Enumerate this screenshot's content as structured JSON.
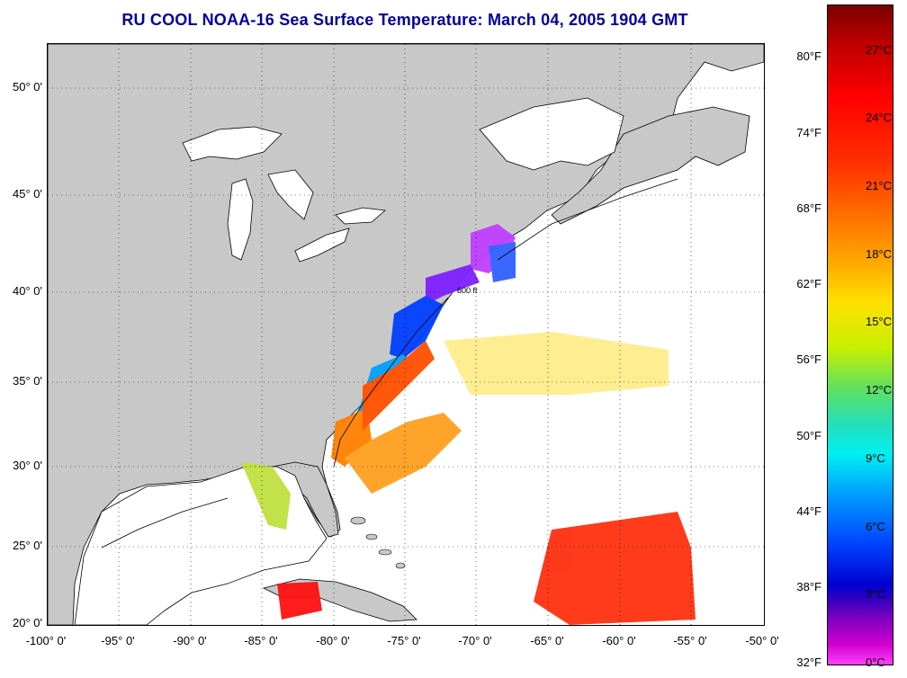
{
  "title": "RU COOL  NOAA-16  Sea Surface Temperature:  March 04, 2005 1904 GMT",
  "map": {
    "lat_ticks": [
      "50° 0'",
      "45° 0'",
      "40° 0'",
      "35° 0'",
      "30° 0'",
      "25° 0'",
      "20° 0'"
    ],
    "lon_ticks": [
      "-100° 0'",
      "-95° 0'",
      "-90° 0'",
      "-85° 0'",
      "-80° 0'",
      "-75° 0'",
      "-70° 0'",
      "-65° 0'",
      "-60° 0'",
      "-55° 0'",
      "-50° 0'"
    ],
    "contour_label": "600 ft",
    "land_color": "#c8c8c8",
    "ocean_color": "#ffffff"
  },
  "colorbar": {
    "fahrenheit_labels": [
      "80°F",
      "74°F",
      "68°F",
      "62°F",
      "56°F",
      "50°F",
      "44°F",
      "38°F",
      "32°F"
    ],
    "celsius_labels": [
      "27°C",
      "24°C",
      "21°C",
      "18°C",
      "15°C",
      "12°C",
      "9°C",
      "6°C",
      "3°C",
      "0°C"
    ]
  }
}
